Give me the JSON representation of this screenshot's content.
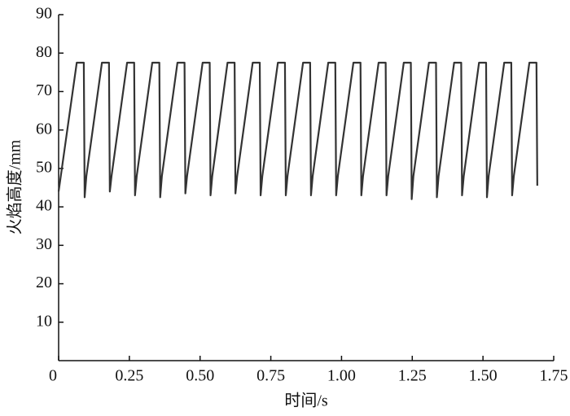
{
  "chart_data": {
    "type": "line",
    "x_label": "时间/s",
    "y_label": "火焰高度/mm",
    "xlim": [
      0,
      1.75
    ],
    "xticks": [
      0,
      0.25,
      {
        "value": 0.5,
        "label": "0.50"
      },
      0.75,
      {
        "value": 1,
        "label": "1.00"
      },
      1.25,
      {
        "value": 1.5,
        "label": "1.50"
      },
      1.75
    ],
    "ylim": [
      0,
      90
    ],
    "yticks": [
      10,
      20,
      30,
      40,
      50,
      60,
      70,
      80,
      90
    ],
    "grid": false,
    "series": [
      {
        "color": "#333333",
        "x": [
          0,
          0.064,
          0.089,
          0.092,
          0.098,
          0.153,
          0.178,
          0.181,
          0.187,
          0.242,
          0.267,
          0.27,
          0.276,
          0.331,
          0.356,
          0.359,
          0.365,
          0.42,
          0.445,
          0.448,
          0.454,
          0.509,
          0.534,
          0.537,
          0.543,
          0.597,
          0.622,
          0.625,
          0.631,
          0.686,
          0.711,
          0.714,
          0.72,
          0.775,
          0.8,
          0.803,
          0.809,
          0.864,
          0.889,
          0.892,
          0.898,
          0.953,
          0.978,
          0.981,
          0.987,
          1.042,
          1.067,
          1.07,
          1.076,
          1.131,
          1.156,
          1.159,
          1.165,
          1.22,
          1.245,
          1.248,
          1.254,
          1.309,
          1.334,
          1.337,
          1.343,
          1.398,
          1.423,
          1.426,
          1.432,
          1.486,
          1.511,
          1.514,
          1.52,
          1.575,
          1.6,
          1.603,
          1.609,
          1.664,
          1.689,
          1.692
        ],
        "values": [
          44,
          77.5,
          77.5,
          42.5,
          48,
          77.5,
          77.5,
          44,
          48,
          77.5,
          77.5,
          43,
          48,
          77.5,
          77.5,
          42.5,
          48,
          77.5,
          77.5,
          43.5,
          48,
          77.5,
          77.5,
          43,
          48,
          77.5,
          77.5,
          43.5,
          48,
          77.5,
          77.5,
          43,
          48,
          77.5,
          77.5,
          43,
          48,
          77.5,
          77.5,
          43,
          48,
          77.5,
          77.5,
          43,
          48,
          77.5,
          77.5,
          43,
          48,
          77.5,
          77.5,
          43,
          48,
          77.5,
          77.5,
          42,
          48,
          77.5,
          77.5,
          42.5,
          48,
          77.5,
          77.5,
          43,
          48,
          77.5,
          77.5,
          42.5,
          48,
          77.5,
          77.5,
          43,
          48,
          77.5,
          77.5,
          45.5
        ]
      }
    ]
  }
}
